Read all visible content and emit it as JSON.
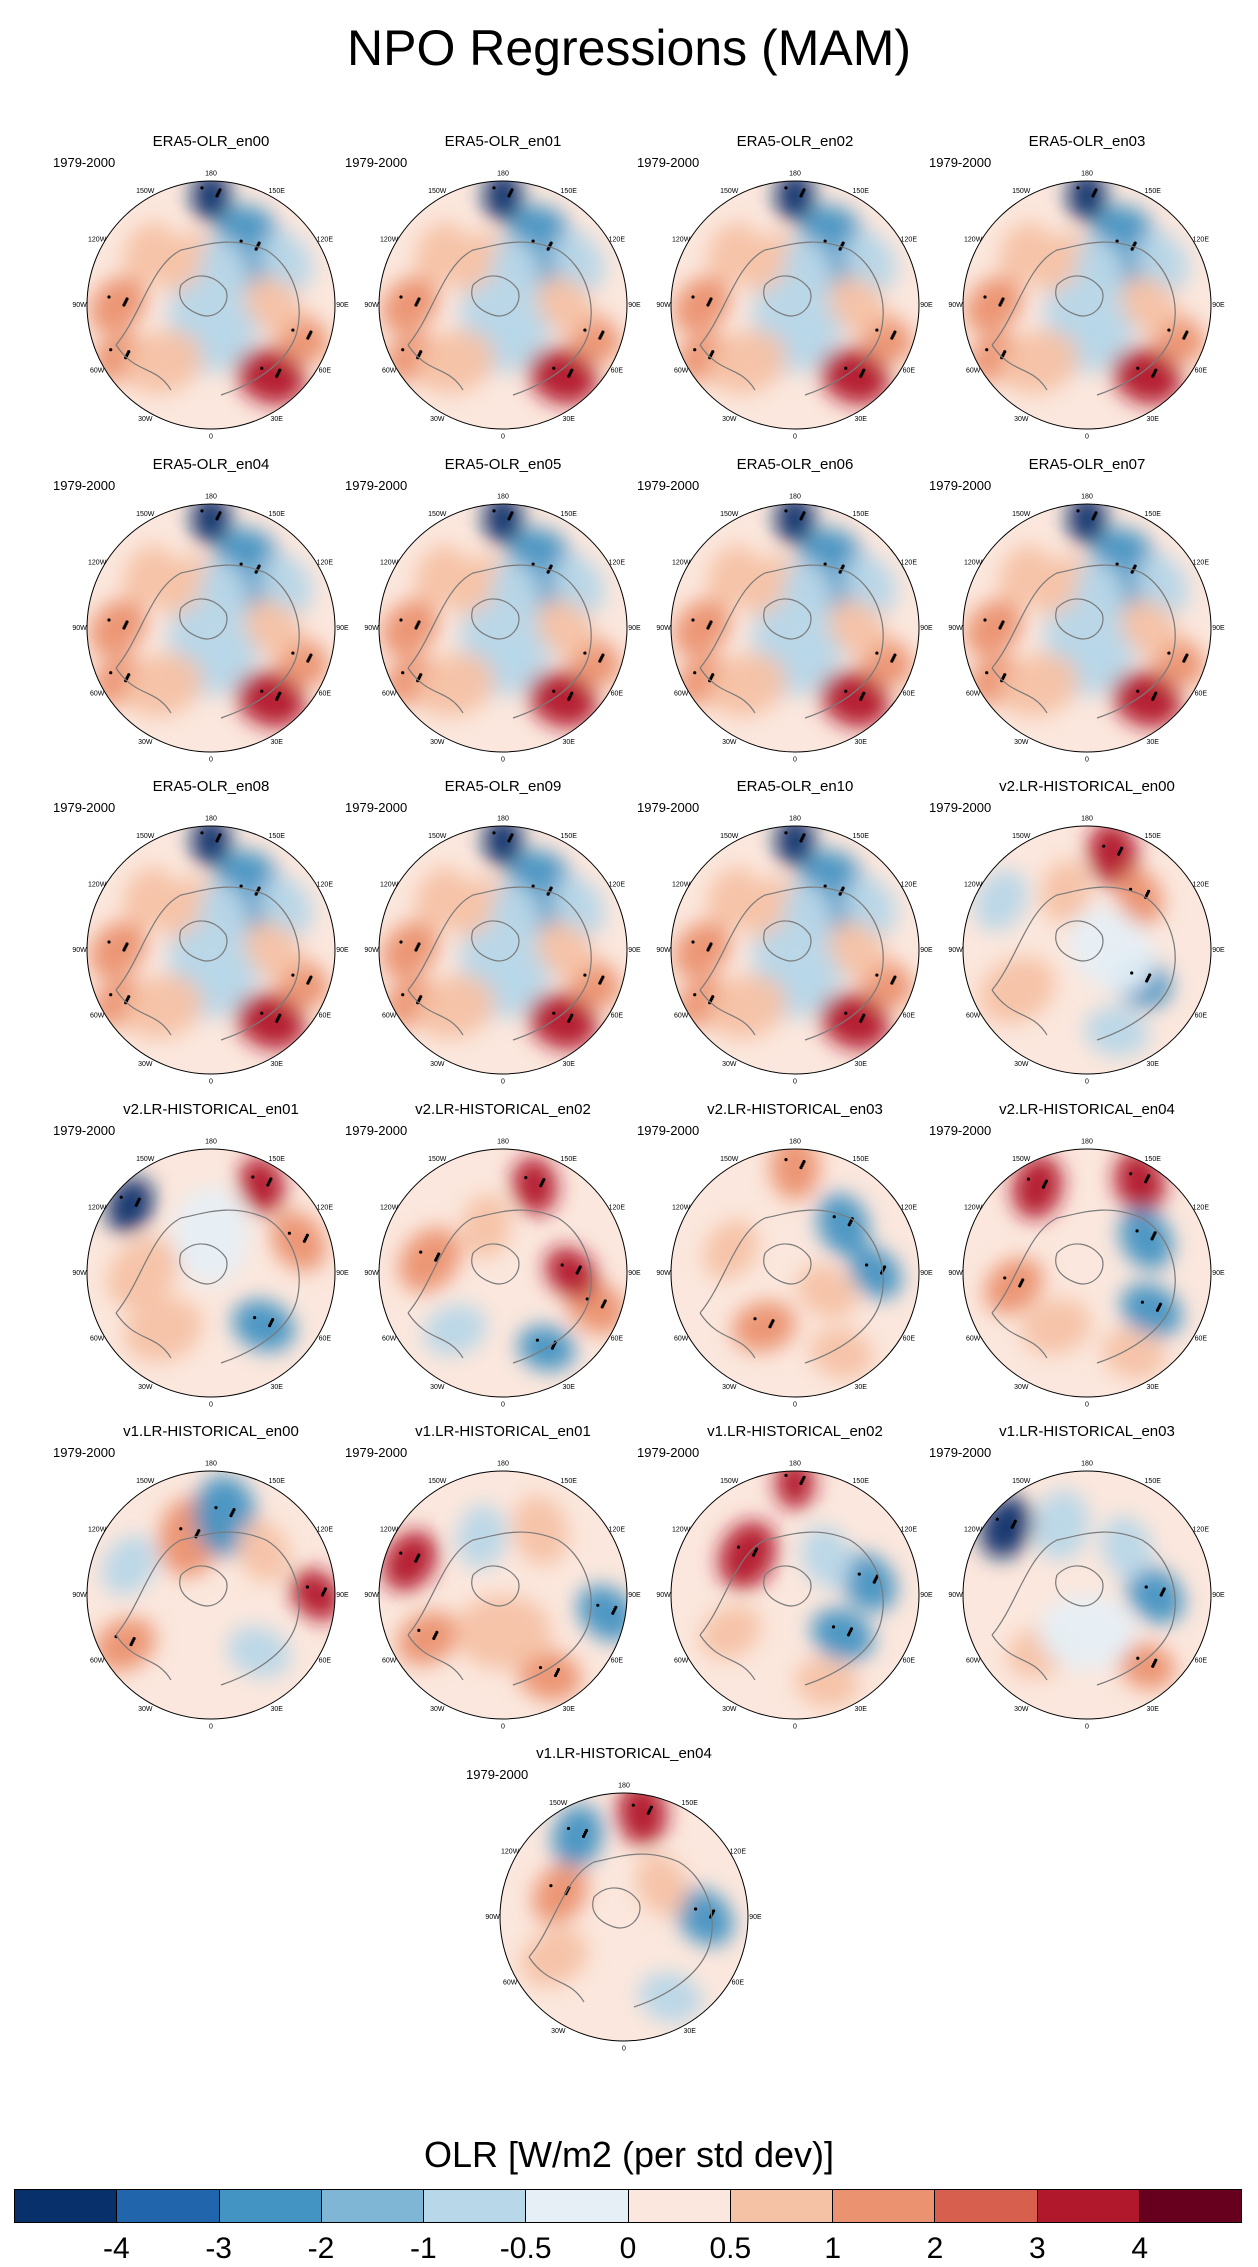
{
  "title": "NPO Regressions (MAM)",
  "period": "1979-2000",
  "longitude_labels": [
    "180",
    "150E",
    "120E",
    "90E",
    "60E",
    "30E",
    "0",
    "30W",
    "60W",
    "90W",
    "120W",
    "150W"
  ],
  "panels": [
    {
      "title": "ERA5-OLR_en00",
      "pattern": "era5"
    },
    {
      "title": "ERA5-OLR_en01",
      "pattern": "era5"
    },
    {
      "title": "ERA5-OLR_en02",
      "pattern": "era5"
    },
    {
      "title": "ERA5-OLR_en03",
      "pattern": "era5"
    },
    {
      "title": "ERA5-OLR_en04",
      "pattern": "era5"
    },
    {
      "title": "ERA5-OLR_en05",
      "pattern": "era5"
    },
    {
      "title": "ERA5-OLR_en06",
      "pattern": "era5"
    },
    {
      "title": "ERA5-OLR_en07",
      "pattern": "era5"
    },
    {
      "title": "ERA5-OLR_en08",
      "pattern": "era5"
    },
    {
      "title": "ERA5-OLR_en09",
      "pattern": "era5"
    },
    {
      "title": "ERA5-OLR_en10",
      "pattern": "era5"
    },
    {
      "title": "v2.LR-HISTORICAL_en00",
      "pattern": "v2a"
    },
    {
      "title": "v2.LR-HISTORICAL_en01",
      "pattern": "v2b"
    },
    {
      "title": "v2.LR-HISTORICAL_en02",
      "pattern": "v2c"
    },
    {
      "title": "v2.LR-HISTORICAL_en03",
      "pattern": "v2d"
    },
    {
      "title": "v2.LR-HISTORICAL_en04",
      "pattern": "v2e"
    },
    {
      "title": "v1.LR-HISTORICAL_en00",
      "pattern": "v1a"
    },
    {
      "title": "v1.LR-HISTORICAL_en01",
      "pattern": "v1b"
    },
    {
      "title": "v1.LR-HISTORICAL_en02",
      "pattern": "v1c"
    },
    {
      "title": "v1.LR-HISTORICAL_en03",
      "pattern": "v1d"
    },
    {
      "title": "v1.LR-HISTORICAL_en04",
      "pattern": "v1e"
    }
  ],
  "colorbar": {
    "title": "OLR [W/m2 (per std dev)]",
    "colors": [
      "#08306b",
      "#2166ac",
      "#4393c3",
      "#7fb6d6",
      "#b8d7e8",
      "#e6eff5",
      "#fbe7dd",
      "#f6c2a5",
      "#eb9270",
      "#d6604d",
      "#b2182b",
      "#67001f"
    ],
    "labels": [
      "-4",
      "-3",
      "-2",
      "-1",
      "-0.5",
      "0",
      "0.5",
      "1",
      "2",
      "3",
      "4"
    ]
  }
}
